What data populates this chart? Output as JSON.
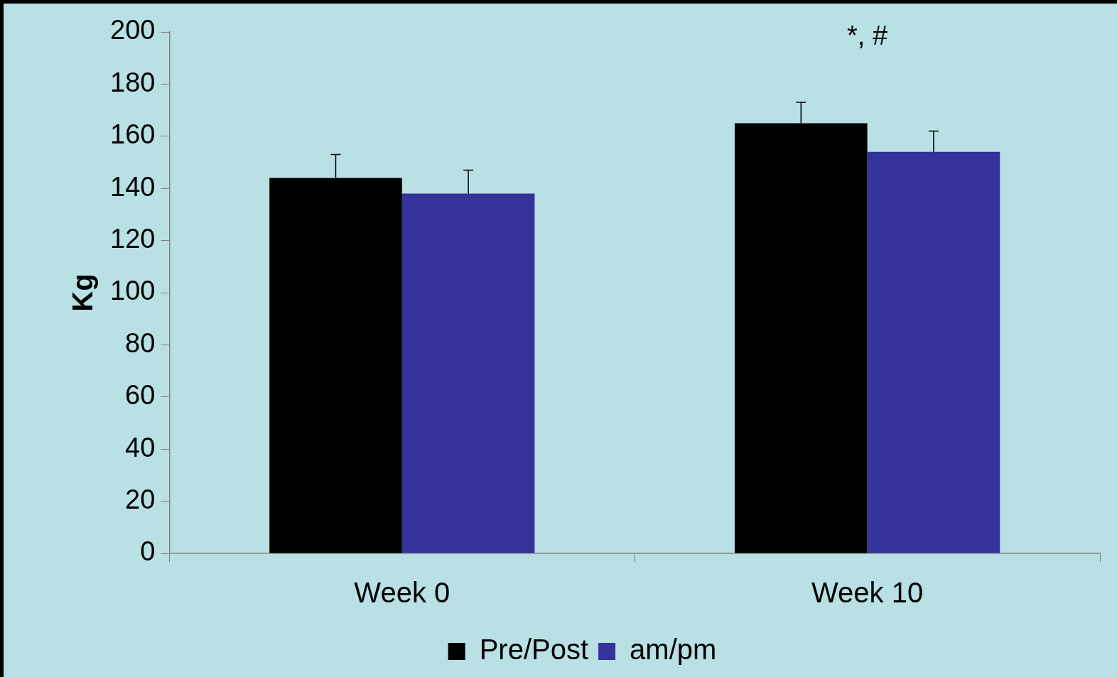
{
  "chart_data": {
    "type": "bar",
    "ylabel": "Kg",
    "categories": [
      "Week 0",
      "Week 10"
    ],
    "series": [
      {
        "name": "Pre/Post",
        "color": "#000000",
        "values": [
          144,
          165
        ],
        "errors": [
          [
            144,
            153
          ],
          [
            165,
            173
          ]
        ]
      },
      {
        "name": "am/pm",
        "color": "#333399",
        "values": [
          138,
          154
        ],
        "errors": [
          [
            138,
            147
          ],
          [
            154,
            162
          ]
        ]
      }
    ],
    "ylim": [
      0,
      200
    ],
    "yticks": [
      0,
      20,
      40,
      60,
      80,
      100,
      120,
      140,
      160,
      180,
      200
    ],
    "grid": false,
    "legend": "bottom",
    "annotations": [
      "*, #"
    ]
  }
}
